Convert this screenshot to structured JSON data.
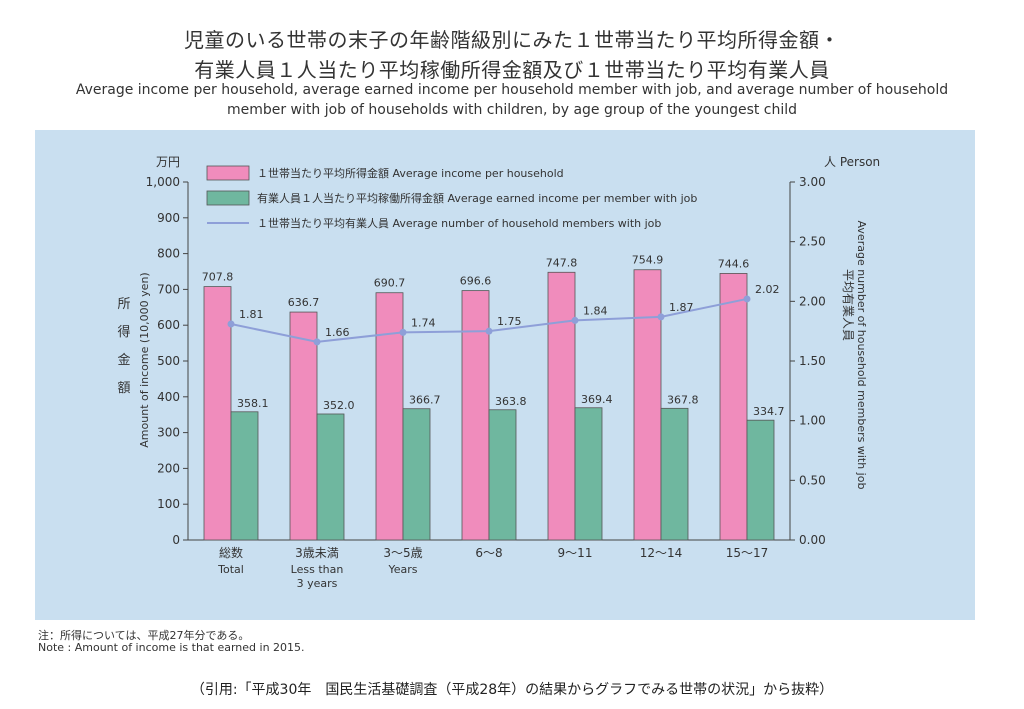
{
  "titles": {
    "jp_line1": "児童のいる世帯の末子の年齢階級別にみた１世帯当たり平均所得金額・",
    "jp_line2": "有業人員１人当たり平均稼働所得金額及び１世帯当たり平均有業人員",
    "en_line1": "Average income per household, average earned income per household member with job, and average number of household",
    "en_line2": "member with job of households with children, by age group of the youngest child"
  },
  "note": {
    "jp": "注：所得については、平成27年分である。",
    "en": "Note : Amount of income is that earned in 2015."
  },
  "source": "（引用:「平成30年　国民生活基礎調査（平成28年）の結果からグラフでみる世帯の状況」から抜粋）",
  "chart_data": {
    "type": "bar",
    "categories": [
      {
        "jp": "総数",
        "en": [
          "Total"
        ]
      },
      {
        "jp": "3歳未満",
        "en": [
          "Less than",
          "3 years"
        ]
      },
      {
        "jp": "3～5歳",
        "en": [
          "Years"
        ]
      },
      {
        "jp": "6～8",
        "en": []
      },
      {
        "jp": "9～11",
        "en": []
      },
      {
        "jp": "12～14",
        "en": []
      },
      {
        "jp": "15～17",
        "en": []
      }
    ],
    "series": [
      {
        "name": "１世帯当たり平均所得金額 Average income per household",
        "type": "bar",
        "axis": "left",
        "color": "#f08cbc",
        "values": [
          707.8,
          636.7,
          690.7,
          696.6,
          747.8,
          754.9,
          744.6
        ],
        "labels": [
          "707.8",
          "636.7",
          "690.7",
          "696.6",
          "747.8",
          "754.9",
          "744.6"
        ]
      },
      {
        "name": "有業人員１人当たり平均稼働所得金額 Average earned income per member with job",
        "type": "bar",
        "axis": "left",
        "color": "#6fb79f",
        "values": [
          358.1,
          352.0,
          366.7,
          363.8,
          369.4,
          367.8,
          334.7
        ],
        "labels": [
          "358.1",
          "352.0",
          "366.7",
          "363.8",
          "369.4",
          "367.8",
          "334.7"
        ]
      },
      {
        "name": "１世帯当たり平均有業人員 Average number of household members with job",
        "type": "line",
        "axis": "right",
        "color": "#8e9fd8",
        "values": [
          1.81,
          1.66,
          1.74,
          1.75,
          1.84,
          1.87,
          2.02
        ],
        "labels": [
          "1.81",
          "1.66",
          "1.74",
          "1.75",
          "1.84",
          "1.87",
          "2.02"
        ]
      }
    ],
    "left_axis": {
      "unit": "万円",
      "label_jp": [
        "所",
        "得",
        "金",
        "額"
      ],
      "label_en": "Amount of income (10,000 yen)",
      "ylim": [
        0,
        1000
      ],
      "ticks": [
        0,
        100,
        200,
        300,
        400,
        500,
        600,
        700,
        800,
        900,
        1000
      ],
      "tick_labels": [
        "0",
        "100",
        "200",
        "300",
        "400",
        "500",
        "600",
        "700",
        "800",
        "900",
        "1,000"
      ]
    },
    "right_axis": {
      "unit": "人 Person",
      "label_jp": "平均有業人員",
      "label_en": "Average number of household members with job",
      "ylim": [
        0,
        3
      ],
      "ticks": [
        0,
        0.5,
        1,
        1.5,
        2,
        2.5,
        3
      ],
      "tick_labels": [
        "0.00",
        "0.50",
        "1.00",
        "1.50",
        "2.00",
        "2.50",
        "3.00"
      ]
    },
    "grid": false,
    "legend_position": "top"
  }
}
